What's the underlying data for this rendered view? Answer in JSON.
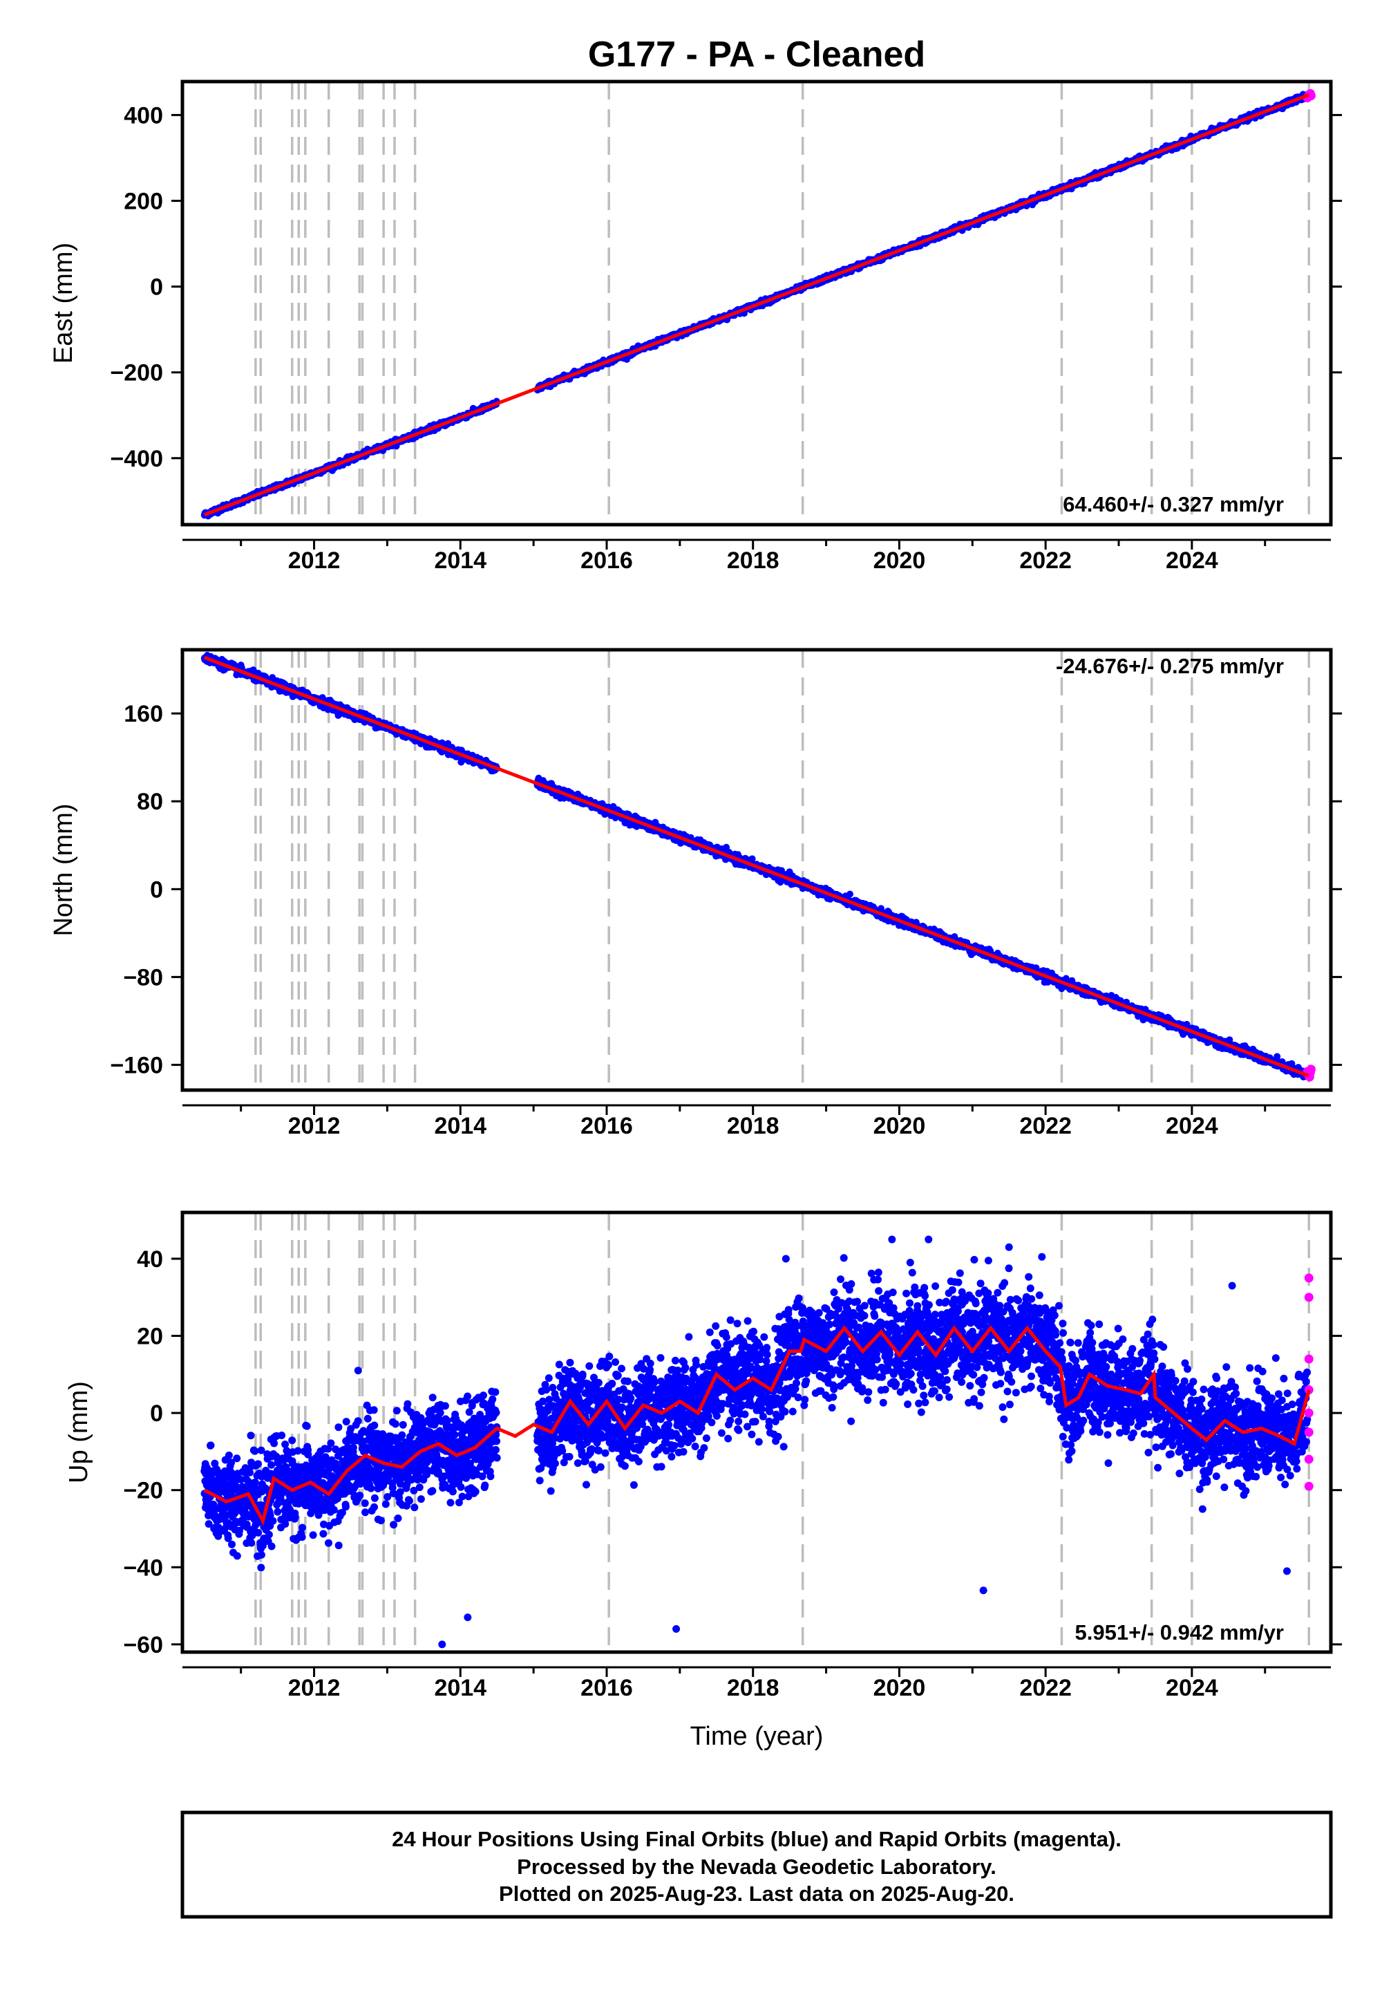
{
  "title": "G177  - PA - Cleaned",
  "xlabel": "Time (year)",
  "footer": [
    "24 Hour Positions Using Final Orbits (blue) and Rapid Orbits (magenta).",
    "Processed by the Nevada Geodetic Laboratory.",
    "Plotted on 2025-Aug-23. Last data on 2025-Aug-20."
  ],
  "colors": {
    "final": "#0000ff",
    "rapid": "#ff00ff",
    "model": "#ff0000",
    "break": "#bdbdbd"
  },
  "chart_data": [
    {
      "type": "scatter",
      "component": "east",
      "ylabel": "East (mm)",
      "rate_label": "64.460+/- 0.327 mm/yr",
      "rate": 64.46,
      "xlim": [
        2010.2,
        2025.9
      ],
      "ylim": [
        -555,
        478
      ],
      "yticks": [
        -400,
        -200,
        0,
        200,
        400
      ],
      "ytick_labels": [
        "−400",
        "−200",
        "0",
        "200",
        "400"
      ],
      "xticks": [
        2012,
        2014,
        2016,
        2018,
        2020,
        2022,
        2024
      ],
      "xtick_labels": [
        "2012",
        "2014",
        "2016",
        "2018",
        "2020",
        "2022",
        "2024"
      ],
      "trend": [
        [
          2010.5,
          -532
        ],
        [
          2025.6,
          447
        ]
      ],
      "gaps": [
        [
          2014.5,
          2015.05
        ]
      ],
      "noise_sd": 3,
      "rapid_points": [
        [
          2025.58,
          440
        ],
        [
          2025.59,
          443
        ],
        [
          2025.6,
          446
        ],
        [
          2025.61,
          448
        ],
        [
          2025.62,
          450
        ],
        [
          2025.63,
          445
        ]
      ]
    },
    {
      "type": "scatter",
      "component": "north",
      "ylabel": "North (mm)",
      "rate_label": "-24.676+/- 0.275 mm/yr",
      "rate": -24.676,
      "xlim": [
        2010.2,
        2025.9
      ],
      "ylim": [
        -183,
        218
      ],
      "yticks": [
        -160,
        -80,
        0,
        80,
        160
      ],
      "ytick_labels": [
        "−160",
        "−80",
        "0",
        "80",
        "160"
      ],
      "xticks": [
        2012,
        2014,
        2016,
        2018,
        2020,
        2022,
        2024
      ],
      "xtick_labels": [
        "2012",
        "2014",
        "2016",
        "2018",
        "2020",
        "2022",
        "2024"
      ],
      "trend": [
        [
          2010.5,
          211
        ],
        [
          2025.6,
          -170
        ]
      ],
      "gaps": [
        [
          2014.5,
          2015.05
        ]
      ],
      "noise_sd": 2,
      "rapid_points": [
        [
          2025.58,
          -166
        ],
        [
          2025.59,
          -168
        ],
        [
          2025.6,
          -170
        ],
        [
          2025.61,
          -171
        ],
        [
          2025.62,
          -167
        ],
        [
          2025.63,
          -164
        ]
      ]
    },
    {
      "type": "scatter",
      "component": "up",
      "ylabel": "Up (mm)",
      "rate_label": "5.951+/- 0.942 mm/yr",
      "rate": 5.951,
      "xlim": [
        2010.2,
        2025.9
      ],
      "ylim": [
        -62,
        52
      ],
      "yticks": [
        -60,
        -40,
        -20,
        0,
        20,
        40
      ],
      "ytick_labels": [
        "−60",
        "−40",
        "−20",
        "0",
        "20",
        "40"
      ],
      "xticks": [
        2012,
        2014,
        2016,
        2018,
        2020,
        2022,
        2024
      ],
      "xtick_labels": [
        "2012",
        "2014",
        "2016",
        "2018",
        "2020",
        "2022",
        "2024"
      ],
      "model_curve": [
        [
          2010.5,
          -20
        ],
        [
          2010.8,
          -23
        ],
        [
          2011.1,
          -21
        ],
        [
          2011.3,
          -28
        ],
        [
          2011.45,
          -17
        ],
        [
          2011.7,
          -20
        ],
        [
          2011.95,
          -18
        ],
        [
          2012.2,
          -21
        ],
        [
          2012.45,
          -15
        ],
        [
          2012.7,
          -11
        ],
        [
          2012.95,
          -13
        ],
        [
          2013.2,
          -14
        ],
        [
          2013.45,
          -10
        ],
        [
          2013.7,
          -8
        ],
        [
          2013.95,
          -11
        ],
        [
          2014.2,
          -9
        ],
        [
          2014.5,
          -4
        ],
        [
          2014.75,
          -6
        ],
        [
          2015.0,
          -3
        ],
        [
          2015.25,
          -5
        ],
        [
          2015.5,
          3
        ],
        [
          2015.75,
          -3
        ],
        [
          2016.0,
          3
        ],
        [
          2016.25,
          -4
        ],
        [
          2016.5,
          2
        ],
        [
          2016.75,
          0
        ],
        [
          2017.0,
          3
        ],
        [
          2017.25,
          0
        ],
        [
          2017.5,
          10
        ],
        [
          2017.75,
          6
        ],
        [
          2018.0,
          9
        ],
        [
          2018.25,
          6
        ],
        [
          2018.5,
          16
        ],
        [
          2018.65,
          16
        ],
        [
          2018.7,
          19
        ],
        [
          2019.0,
          16
        ],
        [
          2019.25,
          22
        ],
        [
          2019.5,
          16
        ],
        [
          2019.75,
          21
        ],
        [
          2020.0,
          15
        ],
        [
          2020.25,
          21
        ],
        [
          2020.5,
          15
        ],
        [
          2020.75,
          22
        ],
        [
          2021.0,
          16
        ],
        [
          2021.25,
          22
        ],
        [
          2021.5,
          16
        ],
        [
          2021.75,
          22
        ],
        [
          2022.0,
          16
        ],
        [
          2022.2,
          12
        ],
        [
          2022.28,
          2
        ],
        [
          2022.45,
          4
        ],
        [
          2022.6,
          10
        ],
        [
          2022.85,
          7
        ],
        [
          2023.1,
          6
        ],
        [
          2023.3,
          5
        ],
        [
          2023.48,
          10
        ],
        [
          2023.5,
          4
        ],
        [
          2023.75,
          0
        ],
        [
          2024.0,
          -4
        ],
        [
          2024.2,
          -7
        ],
        [
          2024.45,
          -2
        ],
        [
          2024.7,
          -5
        ],
        [
          2024.95,
          -4
        ],
        [
          2025.2,
          -6
        ],
        [
          2025.4,
          -8
        ],
        [
          2025.6,
          6
        ]
      ],
      "gaps": [
        [
          2014.5,
          2015.05
        ]
      ],
      "noise_sd": 6,
      "outliers": [
        [
          2013.75,
          -60
        ],
        [
          2014.1,
          -53
        ],
        [
          2016.95,
          -56
        ],
        [
          2021.15,
          -46
        ],
        [
          2025.3,
          -41
        ],
        [
          2020.4,
          45
        ],
        [
          2020.15,
          39
        ],
        [
          2021.5,
          43
        ],
        [
          2019.9,
          45
        ],
        [
          2018.45,
          40
        ],
        [
          2024.55,
          33
        ]
      ],
      "rapid_points": [
        [
          2025.6,
          35
        ],
        [
          2025.6,
          30
        ],
        [
          2025.6,
          14
        ],
        [
          2025.6,
          6
        ],
        [
          2025.6,
          0
        ],
        [
          2025.6,
          -5
        ],
        [
          2025.6,
          -12
        ],
        [
          2025.6,
          -19
        ]
      ]
    }
  ],
  "equipment_change_epochs": [
    2011.2,
    2011.27,
    2011.7,
    2011.79,
    2011.88,
    2012.2,
    2012.62,
    2012.66,
    2012.95,
    2013.1,
    2013.38,
    2016.03,
    2018.68,
    2022.22,
    2023.45,
    2024.0,
    2025.6
  ]
}
